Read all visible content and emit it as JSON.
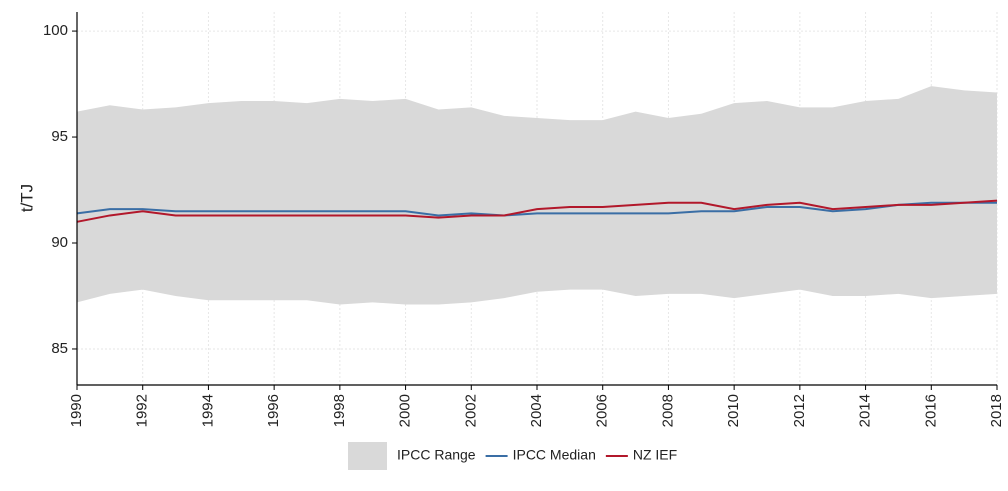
{
  "chart_data": {
    "type": "line",
    "ylabel": "t/TJ",
    "x": [
      1990,
      1991,
      1992,
      1993,
      1994,
      1995,
      1996,
      1997,
      1998,
      1999,
      2000,
      2001,
      2002,
      2003,
      2004,
      2005,
      2006,
      2007,
      2008,
      2009,
      2010,
      2011,
      2012,
      2013,
      2014,
      2015,
      2016,
      2017,
      2018
    ],
    "xlim": [
      1990,
      2018
    ],
    "xticks": [
      1990,
      1992,
      1994,
      1996,
      1998,
      2000,
      2002,
      2004,
      2006,
      2008,
      2010,
      2012,
      2014,
      2016,
      2018
    ],
    "ylim": [
      83.3,
      100.9
    ],
    "yticks": [
      85,
      90,
      95,
      100
    ],
    "grid": true,
    "legend": "bottom",
    "series": [
      {
        "name": "IPCC Range",
        "color": "#d9d9d9",
        "upper": [
          96.2,
          96.5,
          96.3,
          96.4,
          96.6,
          96.7,
          96.7,
          96.6,
          96.8,
          96.7,
          96.8,
          96.3,
          96.4,
          96.0,
          95.9,
          95.8,
          95.8,
          96.2,
          95.9,
          96.1,
          96.6,
          96.7,
          96.4,
          96.4,
          96.7,
          96.8,
          97.4,
          97.2,
          97.1
        ],
        "lower": [
          87.2,
          87.6,
          87.8,
          87.5,
          87.3,
          87.3,
          87.3,
          87.3,
          87.1,
          87.2,
          87.1,
          87.1,
          87.2,
          87.4,
          87.7,
          87.8,
          87.8,
          87.5,
          87.6,
          87.6,
          87.4,
          87.6,
          87.8,
          87.5,
          87.5,
          87.6,
          87.4,
          87.5,
          87.6
        ]
      },
      {
        "name": "IPCC Median",
        "color": "#3a6ea5",
        "values": [
          91.4,
          91.6,
          91.6,
          91.5,
          91.5,
          91.5,
          91.5,
          91.5,
          91.5,
          91.5,
          91.5,
          91.3,
          91.4,
          91.3,
          91.4,
          91.4,
          91.4,
          91.4,
          91.4,
          91.5,
          91.5,
          91.7,
          91.7,
          91.5,
          91.6,
          91.8,
          91.9,
          91.9,
          91.9
        ]
      },
      {
        "name": "NZ IEF",
        "color": "#b2182b",
        "values": [
          91.0,
          91.3,
          91.5,
          91.3,
          91.3,
          91.3,
          91.3,
          91.3,
          91.3,
          91.3,
          91.3,
          91.2,
          91.3,
          91.3,
          91.6,
          91.7,
          91.7,
          91.8,
          91.9,
          91.9,
          91.6,
          91.8,
          91.9,
          91.6,
          91.7,
          91.8,
          91.8,
          91.9,
          92.0
        ]
      }
    ]
  }
}
